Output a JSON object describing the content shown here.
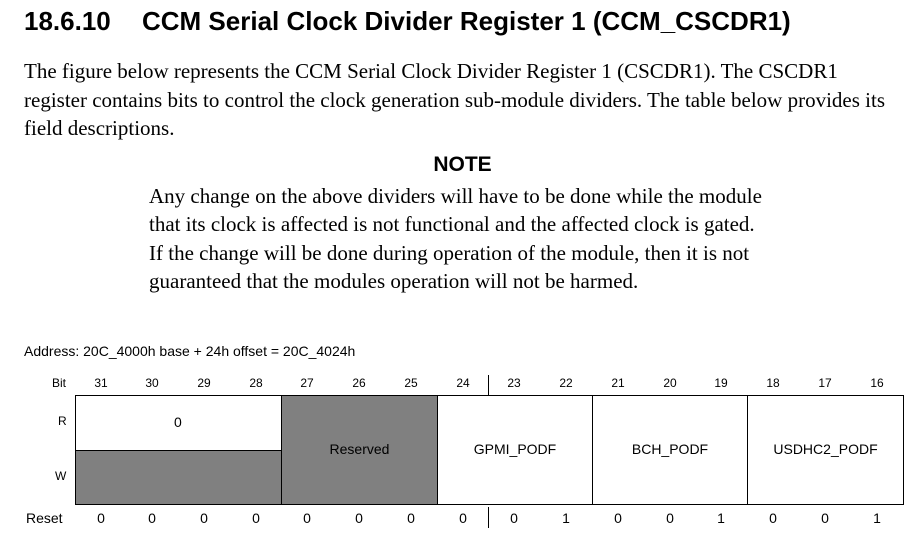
{
  "section": {
    "number": "18.6.10",
    "title": "CCM Serial Clock Divider Register 1 (CCM_CSCDR1)"
  },
  "intro": "The figure below represents the CCM Serial Clock Divider Register 1 (CSCDR1). The CSCDR1 register contains bits to control the clock generation sub-module dividers. The table below provides its field descriptions.",
  "note": {
    "title": "NOTE",
    "body": "Any change on the above dividers will have to be done while the module that its clock is affected is not functional and the affected clock is gated. If the change will be done during operation of the module, then it is not guaranteed that the modules operation will not be harmed."
  },
  "register": {
    "address": "Address: 20C_4000h base + 24h offset = 20C_4024h",
    "row_labels": {
      "bit": "Bit",
      "read": "R",
      "write": "W",
      "reset": "Reset"
    },
    "bits": [
      "31",
      "30",
      "29",
      "28",
      "27",
      "26",
      "25",
      "24",
      "23",
      "22",
      "21",
      "20",
      "19",
      "18",
      "17",
      "16"
    ],
    "reset_values": [
      "0",
      "0",
      "0",
      "0",
      "0",
      "0",
      "0",
      "0",
      "0",
      "1",
      "0",
      "0",
      "1",
      "0",
      "0",
      "1"
    ],
    "fields": {
      "read_only_value": "0",
      "reserved": "Reserved",
      "gpmi_podf": "GPMI_PODF",
      "bch_podf": "BCH_PODF",
      "usdhc2_podf": "USDHC2_PODF"
    },
    "colors": {
      "reserved_fill": "#808080",
      "border": "#000000"
    }
  }
}
